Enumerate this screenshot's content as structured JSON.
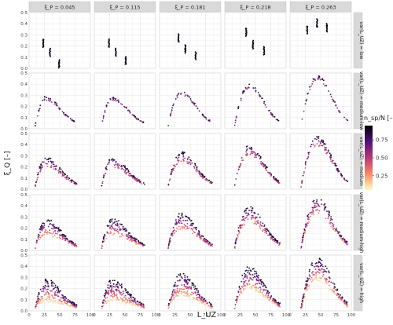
{
  "chart_data": {
    "type": "scatter",
    "facet_columns": [
      "ξ_P = 0.045",
      "ξ_P = 0.115",
      "ξ_P = 0.181",
      "ξ_P = 0.218",
      "ξ_P = 0.263"
    ],
    "facet_rows": [
      "var(L_UZ) = low",
      "var(L_UZ) = medium-low",
      "var(L_UZ) = medium",
      "var(L_UZ) = medium-high",
      "var(L_UZ) = high"
    ],
    "xlabel": "L_UZ",
    "ylabel": "ξ_Q [–]",
    "xlim": [
      0,
      100
    ],
    "ylim": [
      0,
      0.5
    ],
    "x_ticks": [
      "0",
      "25",
      "50",
      "75",
      "100"
    ],
    "y_ticks": [
      "0.0",
      "0.1",
      "0.2",
      "0.3",
      "0.4",
      "0.5"
    ],
    "legend": {
      "title": "n_sp/N [–]",
      "position": "right",
      "ticks": [
        "0.75",
        "0.50",
        "0.25"
      ],
      "colors": [
        "#fcfdbf",
        "#fc8961",
        "#b73779",
        "#51127c",
        "#000004"
      ]
    },
    "facet_strip_color": "#d9d9d9",
    "grid": true,
    "approximate_peaks": {
      "xi_P": [
        0.045,
        0.115,
        0.181,
        0.218,
        0.263
      ],
      "peak_L_UZ": [
        28,
        29,
        36,
        40,
        45
      ],
      "peak_xi_Q": [
        0.29,
        0.29,
        0.34,
        0.4,
        0.48
      ]
    }
  }
}
